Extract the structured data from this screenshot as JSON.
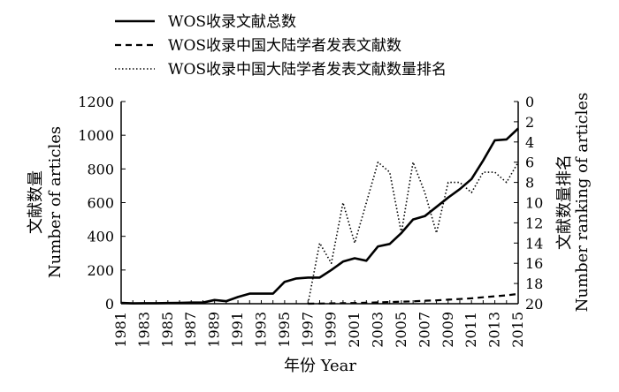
{
  "chart_data": {
    "type": "line",
    "xlabel": "年份 Year",
    "ylabel_left": [
      "文献数量",
      "Number of articles"
    ],
    "ylabel_right": [
      "文献数量排名",
      "Number ranking of articles"
    ],
    "x_tick_labels": [
      "1981",
      "1983",
      "1985",
      "1987",
      "1989",
      "1991",
      "1993",
      "1995",
      "1997",
      "1999",
      "2001",
      "2003",
      "2005",
      "2007",
      "2009",
      "2011",
      "2013",
      "2015"
    ],
    "y_left_ticks": [
      "0",
      "200",
      "400",
      "600",
      "800",
      "1000",
      "1200"
    ],
    "y_right_ticks": [
      "0",
      "2",
      "4",
      "6",
      "8",
      "10",
      "12",
      "14",
      "16",
      "18",
      "20"
    ],
    "xlim": [
      1981,
      2015
    ],
    "ylim_left": [
      0,
      1200
    ],
    "ylim_right": [
      20,
      0
    ],
    "legend_position": "top-left",
    "series": [
      {
        "name": "WOS收录文献总数",
        "axis": "left",
        "style": "solid",
        "x": [
          1981,
          1982,
          1983,
          1984,
          1985,
          1986,
          1987,
          1988,
          1989,
          1990,
          1991,
          1992,
          1993,
          1994,
          1995,
          1996,
          1997,
          1998,
          1999,
          2000,
          2001,
          2002,
          2003,
          2004,
          2005,
          2006,
          2007,
          2008,
          2009,
          2010,
          2011,
          2012,
          2013,
          2014,
          2015
        ],
        "values": [
          5,
          2,
          3,
          3,
          4,
          5,
          7,
          7,
          22,
          15,
          40,
          60,
          60,
          60,
          130,
          150,
          155,
          155,
          200,
          250,
          270,
          255,
          340,
          355,
          420,
          500,
          520,
          575,
          630,
          680,
          740,
          850,
          970,
          975,
          1040
        ]
      },
      {
        "name": "WOS收录中国大陆学者发表文献数",
        "axis": "left",
        "style": "dashed",
        "x": [
          1997,
          1998,
          1999,
          2000,
          2001,
          2002,
          2003,
          2004,
          2005,
          2006,
          2007,
          2008,
          2009,
          2010,
          2011,
          2012,
          2013,
          2014,
          2015
        ],
        "values": [
          0,
          1,
          2,
          3,
          4,
          6,
          8,
          10,
          12,
          14,
          18,
          20,
          24,
          28,
          32,
          38,
          44,
          50,
          58
        ]
      },
      {
        "name": "WOS收录中国大陆学者发表文献数量排名",
        "axis": "right",
        "style": "dotted",
        "x": [
          1997,
          1998,
          1999,
          2000,
          2001,
          2002,
          2003,
          2004,
          2005,
          2006,
          2007,
          2008,
          2009,
          2010,
          2011,
          2012,
          2013,
          2014,
          2015
        ],
        "values": [
          20,
          14,
          16,
          10,
          14,
          10,
          6,
          7,
          13,
          6,
          9,
          13,
          8,
          8,
          9,
          7,
          7,
          8,
          6
        ]
      }
    ]
  }
}
